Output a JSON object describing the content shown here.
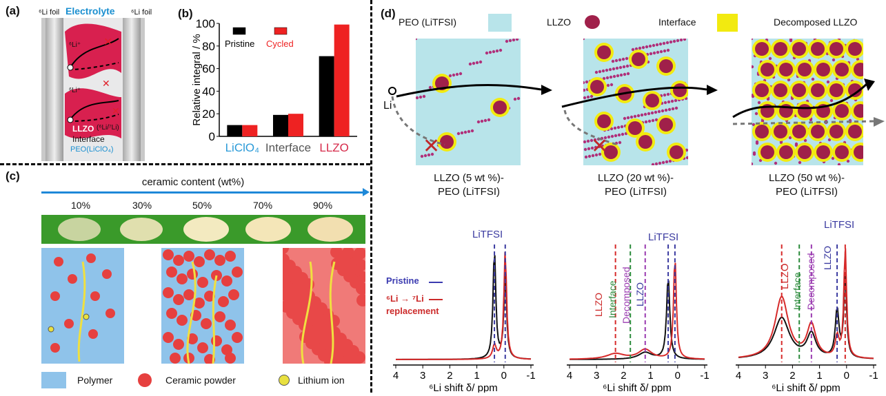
{
  "panel_a": {
    "label": "(a)",
    "left_foil": "⁶Li foil",
    "electrolyte": "Electrolyte",
    "right_foil": "⁶Li foil",
    "li_ion_1": "⁶Li⁺",
    "li_ion_2": "⁶Li⁺",
    "llzo": "LLZO",
    "exchange": "(⁶Li/⁷Li)",
    "interface": "Interface",
    "peo": "PEO(LiClO₄)"
  },
  "panel_b": {
    "label": "(b)",
    "colors": {
      "pristine": "#000000",
      "cycled": "#ee2222"
    }
  },
  "chart_data": {
    "type": "bar",
    "ylabel": "Relative integral / %",
    "ylim": [
      0,
      100
    ],
    "yticks": [
      "0",
      "20",
      "40",
      "60",
      "80",
      "100"
    ],
    "categories": [
      "LiClO₄",
      "Interface",
      "LLZO"
    ],
    "category_colors": [
      "#2a9ad8",
      "#555555",
      "#d62a4a"
    ],
    "series": [
      {
        "name": "Pristine",
        "values": [
          10,
          19,
          71
        ]
      },
      {
        "name": "Cycled",
        "values": [
          10,
          20,
          99
        ]
      }
    ],
    "legend": "top-left"
  },
  "panel_c": {
    "label": "(c)",
    "title": "ceramic content (wt%)",
    "percents": [
      "10%",
      "30%",
      "50%",
      "70%",
      "90%"
    ],
    "legend": [
      "Polymer",
      "Ceramic powder",
      "Lithium ion"
    ]
  },
  "panel_d": {
    "label": "(d)",
    "legend": [
      "PEO (LiTFSI)",
      "LLZO",
      "Interface",
      "Decomposed LLZO"
    ],
    "li": "Li",
    "captions": [
      {
        "line1": "LLZO (5 wt %)-",
        "line2": "PEO (LiTFSI)"
      },
      {
        "line1": "LLZO (20 wt %)-",
        "line2": "PEO (LiTFSI)"
      },
      {
        "line1": "LLZO (50 wt %)-",
        "line2": "PEO (LiTFSI)"
      }
    ],
    "nmr": {
      "lititfsi": "LiTFSI",
      "pristine": "Pristine",
      "replacement_1": "⁶Li → ⁷Li",
      "replacement_2": "replacement",
      "peak_llzo_red": "LLZO",
      "peak_interface": "Interface",
      "peak_decomposed": "Decomposed",
      "peak_llzo_blue": "LLZO",
      "xlabel": "⁶Li shift δ/ ppm",
      "xticks": [
        "4",
        "3",
        "2",
        "1",
        "0",
        "-1"
      ]
    }
  }
}
